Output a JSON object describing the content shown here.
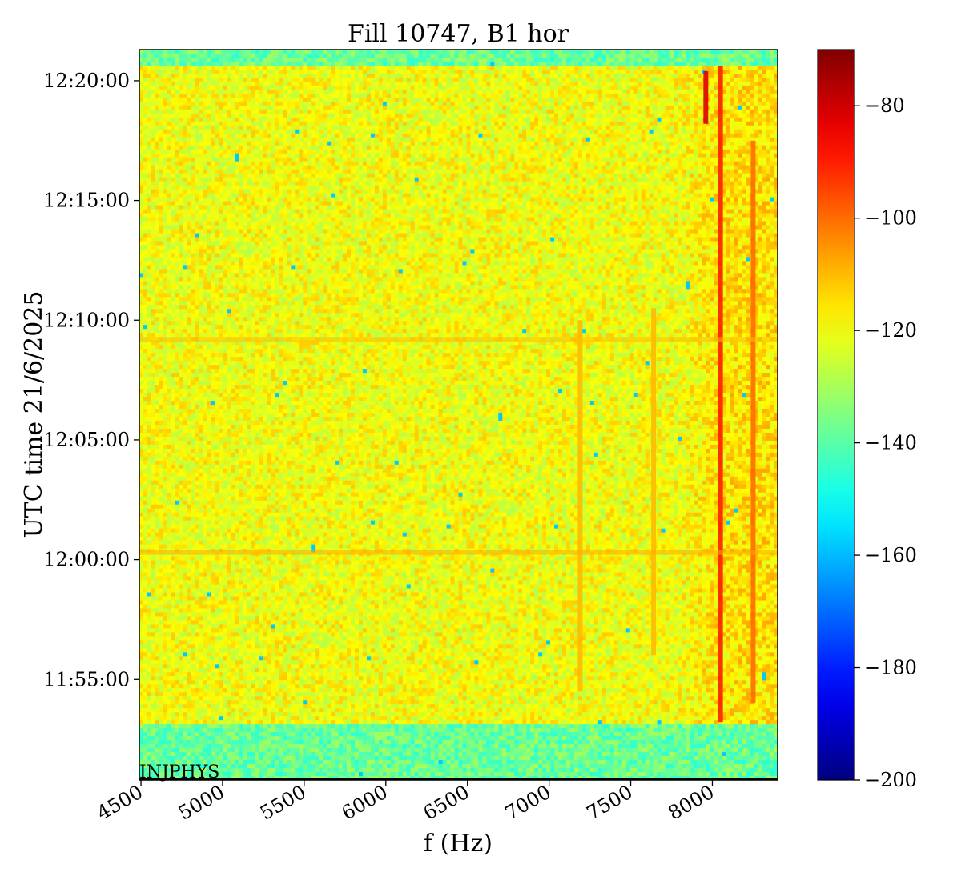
{
  "chart_data": {
    "type": "heatmap",
    "title": "Fill 10747, B1 hor",
    "xlabel": "f (Hz)",
    "ylabel": "UTC time 21/6/2025",
    "xlim": [
      4490,
      8400
    ],
    "x_ticks": [
      {
        "value": 4500,
        "label": "4500"
      },
      {
        "value": 5000,
        "label": "5000"
      },
      {
        "value": 5500,
        "label": "5500"
      },
      {
        "value": 6000,
        "label": "6000"
      },
      {
        "value": 6500,
        "label": "6500"
      },
      {
        "value": 7000,
        "label": "7000"
      },
      {
        "value": 7500,
        "label": "7500"
      },
      {
        "value": 8000,
        "label": "8000"
      }
    ],
    "y_ticks": [
      {
        "minutes": 1220,
        "label": "12:20:00"
      },
      {
        "minutes": 1215,
        "label": "12:15:00"
      },
      {
        "minutes": 1210,
        "label": "12:10:00"
      },
      {
        "minutes": 1205,
        "label": "12:05:00"
      },
      {
        "minutes": 1200,
        "label": "12:00:00"
      },
      {
        "minutes": 1195,
        "label": "11:55:00"
      }
    ],
    "ylim_minutes": [
      1190.8,
      1221.3
    ],
    "colorbar": {
      "colormap": "jet",
      "vmin": -200,
      "vmax": -70,
      "ticks": [
        {
          "value": -80,
          "label": "−80"
        },
        {
          "value": -100,
          "label": "−100"
        },
        {
          "value": -120,
          "label": "−120"
        },
        {
          "value": -140,
          "label": "−140"
        },
        {
          "value": -160,
          "label": "−160"
        },
        {
          "value": -180,
          "label": "−180"
        },
        {
          "value": -200,
          "label": "−200"
        }
      ]
    },
    "background_level": -120,
    "quiet_level": -138,
    "quiet_bands_minutes": [
      [
        1220.6,
        1221.3
      ],
      [
        1190.8,
        1193.2
      ]
    ],
    "vertical_lines": [
      {
        "f": 7960,
        "level": -82,
        "t_from": 1218.2,
        "t_to": 1220.4
      },
      {
        "f": 8050,
        "level": -90,
        "t_from": 1193.2,
        "t_to": 1220.6
      },
      {
        "f": 8250,
        "level": -100,
        "t_from": 1194.0,
        "t_to": 1217.5
      },
      {
        "f": 7190,
        "level": -110,
        "t_from": 1194.5,
        "t_to": 1210.0
      },
      {
        "f": 7640,
        "level": -110,
        "t_from": 1196.0,
        "t_to": 1210.5
      }
    ],
    "horizontal_lines": [
      {
        "t": 1200.3,
        "level": -108
      },
      {
        "t": 1209.2,
        "level": -110
      }
    ],
    "annotation": "INJPHYS"
  },
  "colors": {
    "frame": "#000000",
    "background": "#ffffff"
  }
}
